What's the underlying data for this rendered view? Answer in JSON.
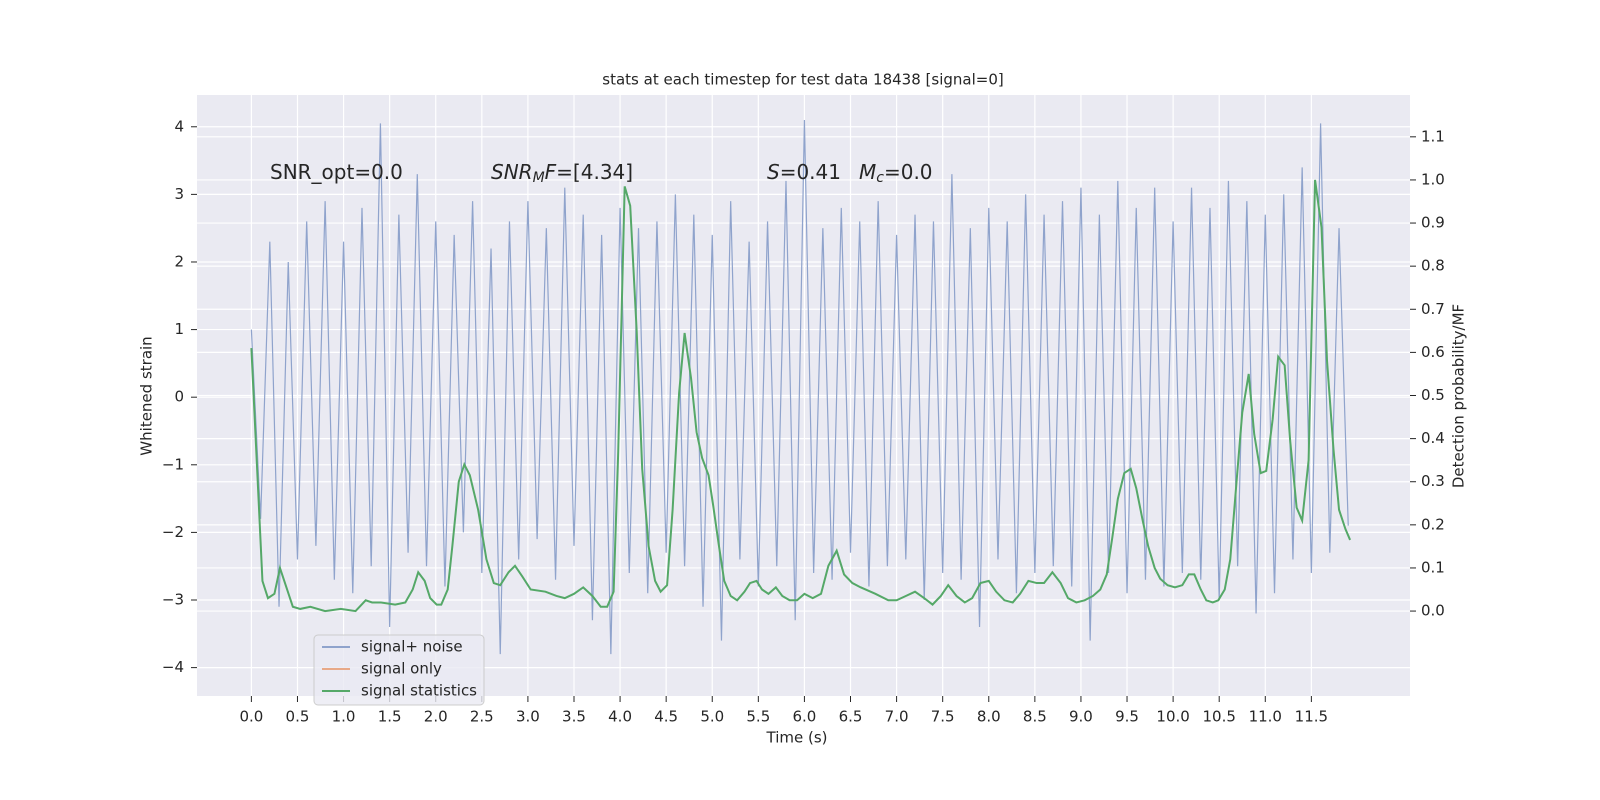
{
  "chart_data": {
    "type": "line",
    "title": "stats at each timestep for test data 18438 [signal=0]",
    "xlabel": "Time (s)",
    "ylabel": "Whitened strain",
    "y2label": "Detection probability/MF",
    "xlim": [
      -0.59,
      12.57
    ],
    "ylim": [
      -4.42,
      4.47
    ],
    "y2lim": [
      -0.197,
      1.197
    ],
    "xticks": [
      {
        "value": 0,
        "label": "0.0"
      },
      {
        "value": 0.5,
        "label": "0.5"
      },
      {
        "value": 1,
        "label": "1.0"
      },
      {
        "value": 1.5,
        "label": "1.5"
      },
      {
        "value": 2,
        "label": "2.0"
      },
      {
        "value": 2.5,
        "label": "2.5"
      },
      {
        "value": 3,
        "label": "3.0"
      },
      {
        "value": 3.5,
        "label": "3.5"
      },
      {
        "value": 4,
        "label": "4.0"
      },
      {
        "value": 4.5,
        "label": "4.5"
      },
      {
        "value": 5,
        "label": "5.0"
      },
      {
        "value": 5.5,
        "label": "5.5"
      },
      {
        "value": 6,
        "label": "6.0"
      },
      {
        "value": 6.5,
        "label": "6.5"
      },
      {
        "value": 7,
        "label": "7.0"
      },
      {
        "value": 7.5,
        "label": "7.5"
      },
      {
        "value": 8,
        "label": "8.0"
      },
      {
        "value": 8.5,
        "label": "8.5"
      },
      {
        "value": 9,
        "label": "9.0"
      },
      {
        "value": 9.5,
        "label": "9.5"
      },
      {
        "value": 10,
        "label": "10.0"
      },
      {
        "value": 10.5,
        "label": "10.5"
      },
      {
        "value": 11,
        "label": "11.0"
      },
      {
        "value": 11.5,
        "label": "11.5"
      }
    ],
    "yticks": [
      {
        "value": -4,
        "label": "−4"
      },
      {
        "value": -3,
        "label": "−3"
      },
      {
        "value": -2,
        "label": "−2"
      },
      {
        "value": -1,
        "label": "−1"
      },
      0,
      1,
      2,
      3,
      4
    ],
    "y2ticks": [
      {
        "value": 0,
        "label": "0.0"
      },
      {
        "value": 0.1,
        "label": "0.1"
      },
      {
        "value": 0.2,
        "label": "0.2"
      },
      {
        "value": 0.3,
        "label": "0.3"
      },
      {
        "value": 0.4,
        "label": "0.4"
      },
      {
        "value": 0.5,
        "label": "0.5"
      },
      {
        "value": 0.6,
        "label": "0.6"
      },
      {
        "value": 0.7,
        "label": "0.7"
      },
      {
        "value": 0.8,
        "label": "0.8"
      },
      {
        "value": 0.9,
        "label": "0.9"
      },
      {
        "value": 1,
        "label": "1.0"
      },
      {
        "value": 1.1,
        "label": "1.1"
      }
    ],
    "grid": true,
    "legend": "lower left",
    "annotations": [
      [
        {
          "text": "SNR_opt=0.0"
        }
      ],
      [
        {
          "text": "SNR",
          "italic": true
        },
        {
          "text": "M",
          "italic": true,
          "sub": true
        },
        {
          "text": "F",
          "italic": true
        },
        {
          "text": "=[4.34]"
        }
      ],
      [
        {
          "text": "S",
          "italic": true
        },
        {
          "text": "=0.41"
        }
      ],
      [
        {
          "text": "M",
          "italic": true
        },
        {
          "text": "c",
          "italic": true,
          "sub": true
        },
        {
          "text": "=0.0"
        }
      ]
    ],
    "series": [
      {
        "name": "signal+ noise",
        "color": "#8fa3cc",
        "x": [
          0,
          0.1,
          0.2,
          0.3,
          0.4,
          0.5,
          0.6,
          0.7,
          0.8,
          0.9,
          1,
          1.1,
          1.2,
          1.3,
          1.4,
          1.5,
          1.6,
          1.7,
          1.8,
          1.9,
          2,
          2.1,
          2.2,
          2.3,
          2.4,
          2.5,
          2.6,
          2.7,
          2.8,
          2.9,
          3,
          3.1,
          3.2,
          3.3,
          3.4,
          3.5,
          3.6,
          3.7,
          3.8,
          3.9,
          4,
          4.1,
          4.2,
          4.3,
          4.4,
          4.5,
          4.6,
          4.7,
          4.8,
          4.9,
          5,
          5.1,
          5.2,
          5.3,
          5.4,
          5.5,
          5.6,
          5.7,
          5.8,
          5.9,
          6,
          6.1,
          6.2,
          6.3,
          6.4,
          6.5,
          6.6,
          6.7,
          6.8,
          6.9,
          7,
          7.1,
          7.2,
          7.3,
          7.4,
          7.5,
          7.6,
          7.7,
          7.8,
          7.9,
          8,
          8.1,
          8.2,
          8.3,
          8.4,
          8.5,
          8.6,
          8.7,
          8.8,
          8.9,
          9,
          9.1,
          9.2,
          9.3,
          9.4,
          9.5,
          9.6,
          9.7,
          9.8,
          9.9,
          10,
          10.1,
          10.2,
          10.3,
          10.4,
          10.5,
          10.6,
          10.7,
          10.8,
          10.9,
          11,
          11.1,
          11.2,
          11.3,
          11.4,
          11.5,
          11.6,
          11.7,
          11.8,
          11.9
        ],
        "values": [
          1.0,
          -1.8,
          2.3,
          -3.1,
          2.0,
          -2.4,
          2.6,
          -2.2,
          2.9,
          -2.7,
          2.3,
          -2.9,
          2.8,
          -2.5,
          4.05,
          -3.4,
          2.7,
          -2.3,
          3.3,
          -2.5,
          2.6,
          -2.8,
          2.4,
          -2.0,
          2.9,
          -2.6,
          2.2,
          -3.8,
          2.6,
          -2.4,
          2.9,
          -2.1,
          2.5,
          -2.7,
          3.1,
          -2.2,
          2.7,
          -3.3,
          2.4,
          -3.8,
          2.8,
          -2.6,
          2.5,
          -2.9,
          2.6,
          -2.3,
          3.0,
          -2.5,
          2.7,
          -3.1,
          2.4,
          -3.6,
          2.9,
          -2.4,
          2.3,
          -2.8,
          2.6,
          -2.5,
          3.2,
          -3.3,
          4.1,
          -2.6,
          2.5,
          -2.7,
          2.8,
          -2.3,
          2.6,
          -2.8,
          2.9,
          -2.5,
          2.4,
          -2.4,
          2.7,
          -3.0,
          2.6,
          -2.6,
          3.3,
          -2.7,
          2.5,
          -3.4,
          2.8,
          -2.4,
          2.6,
          -2.9,
          3.0,
          -2.6,
          2.7,
          -2.5,
          2.9,
          -2.8,
          3.1,
          -3.6,
          2.7,
          -2.6,
          3.2,
          -2.9,
          2.8,
          -2.7,
          3.1,
          -2.8,
          2.6,
          -2.6,
          3.1,
          -2.7,
          2.8,
          -3.0,
          3.2,
          -2.5,
          2.9,
          -3.2,
          2.7,
          -2.9,
          3.0,
          -2.4,
          3.4,
          -2.6,
          4.05,
          -2.3,
          2.5,
          -1.9
        ]
      },
      {
        "name": "signal only",
        "color": "#e8a988",
        "x": [],
        "values": []
      },
      {
        "name": "signal statistics",
        "color": "#55a868",
        "axis": "y2",
        "x": [
          0,
          0.12,
          0.18,
          0.25,
          0.31,
          0.45,
          0.53,
          0.64,
          0.8,
          0.97,
          1.13,
          1.24,
          1.31,
          1.4,
          1.56,
          1.67,
          1.75,
          1.81,
          1.88,
          1.94,
          2.01,
          2.06,
          2.13,
          2.18,
          2.25,
          2.31,
          2.37,
          2.46,
          2.55,
          2.63,
          2.7,
          2.79,
          2.86,
          2.94,
          3.03,
          3.19,
          3.31,
          3.4,
          3.5,
          3.6,
          3.7,
          3.79,
          3.86,
          3.93,
          3.98,
          4.05,
          4.11,
          4.18,
          4.24,
          4.31,
          4.38,
          4.44,
          4.51,
          4.57,
          4.64,
          4.7,
          4.77,
          4.83,
          4.89,
          4.96,
          5.01,
          5.07,
          5.13,
          5.2,
          5.27,
          5.35,
          5.41,
          5.48,
          5.54,
          5.61,
          5.69,
          5.76,
          5.84,
          5.92,
          6,
          6.09,
          6.18,
          6.26,
          6.35,
          6.43,
          6.52,
          6.61,
          6.77,
          6.91,
          7,
          7.1,
          7.2,
          7.3,
          7.39,
          7.48,
          7.56,
          7.65,
          7.74,
          7.82,
          7.91,
          8,
          8.08,
          8.17,
          8.26,
          8.34,
          8.43,
          8.52,
          8.6,
          8.69,
          8.78,
          8.86,
          8.95,
          9.04,
          9.13,
          9.21,
          9.28,
          9.34,
          9.4,
          9.47,
          9.54,
          9.6,
          9.67,
          9.73,
          9.8,
          9.86,
          9.94,
          10.02,
          10.1,
          10.17,
          10.23,
          10.3,
          10.36,
          10.43,
          10.49,
          10.56,
          10.62,
          10.69,
          10.75,
          10.82,
          10.88,
          10.95,
          11.01,
          11.08,
          11.14,
          11.21,
          11.27,
          11.34,
          11.4,
          11.47,
          11.54,
          11.61,
          11.67,
          11.74,
          11.8,
          11.87,
          11.92
        ],
        "values": [
          0.61,
          0.07,
          0.03,
          0.04,
          0.1,
          0.01,
          0.005,
          0.01,
          0,
          0.005,
          0,
          0.025,
          0.02,
          0.02,
          0.015,
          0.02,
          0.05,
          0.09,
          0.07,
          0.03,
          0.015,
          0.015,
          0.05,
          0.15,
          0.3,
          0.34,
          0.315,
          0.235,
          0.12,
          0.065,
          0.06,
          0.09,
          0.105,
          0.08,
          0.05,
          0.045,
          0.035,
          0.03,
          0.04,
          0.055,
          0.035,
          0.01,
          0.01,
          0.045,
          0.37,
          0.985,
          0.94,
          0.65,
          0.33,
          0.15,
          0.07,
          0.045,
          0.06,
          0.235,
          0.505,
          0.645,
          0.54,
          0.415,
          0.355,
          0.315,
          0.245,
          0.155,
          0.07,
          0.035,
          0.025,
          0.045,
          0.065,
          0.07,
          0.05,
          0.04,
          0.055,
          0.035,
          0.025,
          0.025,
          0.04,
          0.03,
          0.04,
          0.105,
          0.14,
          0.085,
          0.065,
          0.055,
          0.04,
          0.025,
          0.025,
          0.035,
          0.045,
          0.03,
          0.015,
          0.035,
          0.06,
          0.035,
          0.02,
          0.03,
          0.065,
          0.07,
          0.045,
          0.025,
          0.02,
          0.04,
          0.07,
          0.065,
          0.065,
          0.09,
          0.065,
          0.03,
          0.02,
          0.025,
          0.035,
          0.05,
          0.085,
          0.17,
          0.26,
          0.32,
          0.33,
          0.285,
          0.21,
          0.15,
          0.1,
          0.075,
          0.06,
          0.055,
          0.06,
          0.085,
          0.085,
          0.05,
          0.025,
          0.02,
          0.025,
          0.05,
          0.12,
          0.305,
          0.46,
          0.55,
          0.41,
          0.32,
          0.325,
          0.445,
          0.59,
          0.57,
          0.395,
          0.24,
          0.21,
          0.35,
          1.0,
          0.89,
          0.58,
          0.375,
          0.235,
          0.19,
          0.165
        ]
      }
    ]
  }
}
